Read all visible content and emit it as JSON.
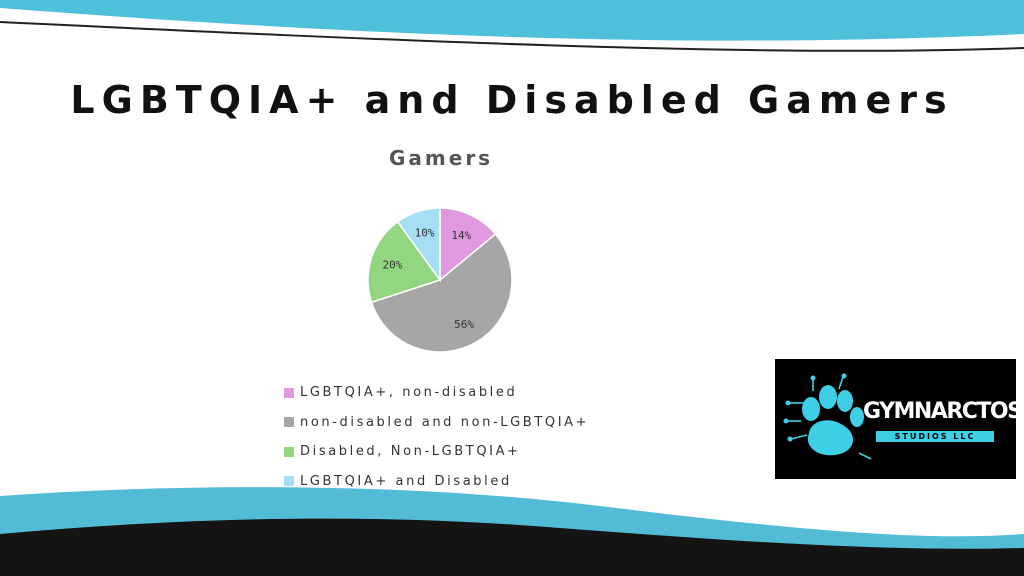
{
  "slide": {
    "title": "LGBTQIA+ and Disabled Gamers"
  },
  "chart_data": {
    "type": "pie",
    "title": "Gamers",
    "categories": [
      "LGBTQIA+, non-disabled",
      "non-disabled and non-LGBTQIA+",
      "Disabled, Non-LGBTQIA+",
      "LGBTQIA+ and Disabled"
    ],
    "values": [
      14,
      56,
      20,
      10
    ],
    "labels": [
      "14%",
      "56%",
      "20%",
      "10%"
    ],
    "colors": [
      "#e098de",
      "#a6a6a6",
      "#93d680",
      "#a5def5"
    ],
    "legend_position": "bottom"
  },
  "logo": {
    "name": "GYMNARCTOS",
    "subtitle": "STUDIOS LLC"
  },
  "theme": {
    "accent": "#4fc0d9",
    "dark": "#111111"
  }
}
